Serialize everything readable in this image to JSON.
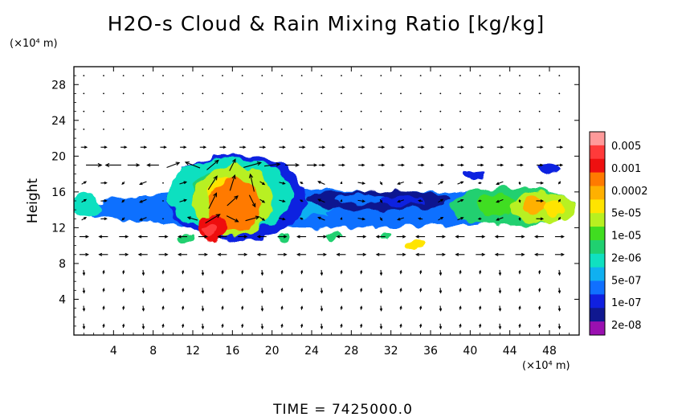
{
  "chart_data": {
    "type": "heatmap",
    "title": "H2O-s Cloud & Rain Mixing Ratio [kg/kg]",
    "x_unit": "(×10⁴ m)",
    "y_unit": "(×10⁴ m)",
    "ylabel": "Height",
    "xlabel": "",
    "time_label": "TIME = 7425000.0",
    "x_ticks": [
      "4",
      "8",
      "12",
      "16",
      "20",
      "24",
      "28",
      "32",
      "36",
      "40",
      "44",
      "48"
    ],
    "x_tick_values": [
      4,
      8,
      12,
      16,
      20,
      24,
      28,
      32,
      36,
      40,
      44,
      48
    ],
    "y_ticks": [
      "4",
      "8",
      "12",
      "16",
      "20",
      "24",
      "28"
    ],
    "y_tick_values": [
      4,
      8,
      12,
      16,
      20,
      24,
      28
    ],
    "xlim": [
      0,
      51
    ],
    "ylim": [
      0,
      30
    ],
    "colorbar": {
      "labels": [
        "0.005",
        "0.001",
        "0.0002",
        "5e-05",
        "1e-05",
        "2e-06",
        "5e-07",
        "1e-07",
        "2e-08"
      ],
      "colors": [
        "#ff9a9a",
        "#ff3a3a",
        "#ee1010",
        "#ff7a00",
        "#ffb000",
        "#ffe400",
        "#b8f020",
        "#40dd20",
        "#20d070",
        "#10e0c0",
        "#10b0f0",
        "#1070ff",
        "#1020e0",
        "#101890",
        "#9a10b0"
      ]
    },
    "regions": [
      {
        "level": 0.2,
        "x0": 0.0,
        "x1": 50.8,
        "y0": 12.0,
        "y1": 16.2
      },
      {
        "level": 0.15,
        "x0": 9.5,
        "x1": 23.5,
        "y0": 10.5,
        "y1": 20.2
      },
      {
        "level": 0.35,
        "x0": 0.0,
        "x1": 2.5,
        "y0": 13.0,
        "y1": 16.0
      },
      {
        "level": 0.35,
        "x0": 9.5,
        "x1": 22.0,
        "y0": 11.5,
        "y1": 19.8
      },
      {
        "level": 0.4,
        "x0": 38.0,
        "x1": 50.8,
        "y0": 12.2,
        "y1": 16.5
      },
      {
        "level": 0.55,
        "x0": 12.0,
        "x1": 20.0,
        "y0": 11.0,
        "y1": 19.0
      },
      {
        "level": 0.6,
        "x0": 44.0,
        "x1": 50.8,
        "y0": 12.5,
        "y1": 16.0
      },
      {
        "level": 0.75,
        "x0": 13.5,
        "x1": 19.0,
        "y0": 11.5,
        "y1": 17.5
      },
      {
        "level": 0.88,
        "x0": 12.5,
        "x1": 15.5,
        "y0": 10.5,
        "y1": 13.5
      },
      {
        "level": 0.95,
        "x0": 13.0,
        "x1": 14.5,
        "y0": 11.0,
        "y1": 12.5
      },
      {
        "level": 0.1,
        "x0": 23.5,
        "x1": 38.0,
        "y0": 14.0,
        "y1": 16.2
      },
      {
        "level": 0.65,
        "x0": 33.5,
        "x1": 35.5,
        "y0": 9.7,
        "y1": 10.7
      },
      {
        "level": 0.45,
        "x0": 10.5,
        "x1": 12.0,
        "y0": 10.3,
        "y1": 11.3
      },
      {
        "level": 0.45,
        "x0": 20.5,
        "x1": 21.5,
        "y0": 10.5,
        "y1": 11.2
      },
      {
        "level": 0.45,
        "x0": 25.5,
        "x1": 27.0,
        "y0": 10.6,
        "y1": 11.3
      },
      {
        "level": 0.45,
        "x0": 31.0,
        "x1": 32.0,
        "y0": 10.6,
        "y1": 11.3
      },
      {
        "level": 0.12,
        "x0": 39.0,
        "x1": 41.5,
        "y0": 17.5,
        "y1": 18.5
      },
      {
        "level": 0.12,
        "x0": 47.0,
        "x1": 49.0,
        "y0": 18.0,
        "y1": 19.0
      }
    ],
    "vectors": {
      "x_step": 2,
      "y_step": 2,
      "strong": [
        {
          "x": 2,
          "y": 19,
          "u": 1.6,
          "v": 0
        },
        {
          "x": 4,
          "y": 19,
          "u": -1.6,
          "v": 0
        },
        {
          "x": 6,
          "y": 19,
          "u": 1.2,
          "v": 0
        },
        {
          "x": 8,
          "y": 19,
          "u": -1.2,
          "v": 0
        },
        {
          "x": 10,
          "y": 19,
          "u": 1.3,
          "v": 0.5
        },
        {
          "x": 12,
          "y": 19,
          "u": -1.5,
          "v": 0.6
        },
        {
          "x": 14,
          "y": 19,
          "u": 1.2,
          "v": 1.0
        },
        {
          "x": 16,
          "y": 19,
          "u": 0.6,
          "v": 1.2
        },
        {
          "x": 18,
          "y": 19,
          "u": 1.8,
          "v": 0.5
        },
        {
          "x": 20,
          "y": 19,
          "u": 1.6,
          "v": 0.2
        },
        {
          "x": 22,
          "y": 19,
          "u": 1.4,
          "v": 0
        },
        {
          "x": 24,
          "y": 19,
          "u": 1.0,
          "v": 0
        },
        {
          "x": 14,
          "y": 17,
          "u": 0.9,
          "v": 1.4
        },
        {
          "x": 16,
          "y": 17,
          "u": 0.5,
          "v": 1.6
        },
        {
          "x": 18,
          "y": 17,
          "u": -0.4,
          "v": 1.8
        },
        {
          "x": 14,
          "y": 15,
          "u": 0.8,
          "v": 1.6
        },
        {
          "x": 16,
          "y": 15,
          "u": 1.1,
          "v": 1.0
        },
        {
          "x": 18,
          "y": 15,
          "u": 0.6,
          "v": -1.2
        },
        {
          "x": 14,
          "y": 13,
          "u": 1.5,
          "v": 0.9
        },
        {
          "x": 16,
          "y": 13,
          "u": 1.2,
          "v": -0.6
        },
        {
          "x": 18,
          "y": 13,
          "u": 1.4,
          "v": 0.4
        },
        {
          "x": 12,
          "y": 13,
          "u": -1.0,
          "v": 0.3
        }
      ]
    }
  }
}
